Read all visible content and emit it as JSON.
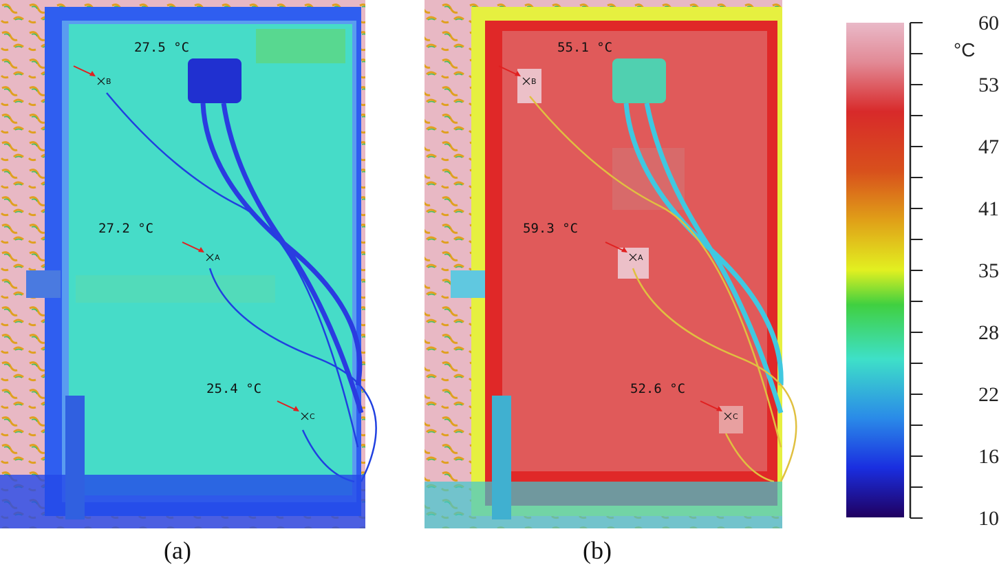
{
  "panels": [
    {
      "caption": "(a)",
      "points": [
        {
          "label": "B",
          "temperature": "27.5 °C"
        },
        {
          "label": "A",
          "temperature": "27.2 °C"
        },
        {
          "label": "C",
          "temperature": "25.4 °C"
        }
      ]
    },
    {
      "caption": "(b)",
      "points": [
        {
          "label": "B",
          "temperature": "55.1 °C"
        },
        {
          "label": "A",
          "temperature": "59.3 °C"
        },
        {
          "label": "C",
          "temperature": "52.6 °C"
        }
      ]
    }
  ],
  "colorbar": {
    "unit": "°C",
    "tick_labels": [
      "60",
      "53",
      "47",
      "41",
      "35",
      "28",
      "22",
      "16",
      "10"
    ]
  }
}
